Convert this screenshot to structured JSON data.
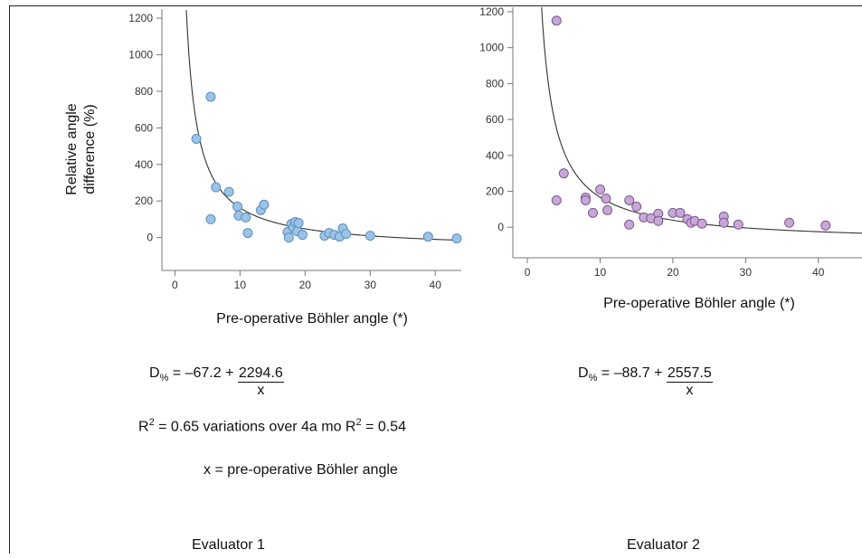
{
  "equations": {
    "eval1": {
      "prefix": "D",
      "subscript": "%",
      "lhs_rest": " = –67.2 + ",
      "numerator": "2294.6",
      "denominator": "x"
    },
    "eval2": {
      "prefix": "D",
      "subscript": "%",
      "lhs_rest": " = –88.7 + ",
      "numerator": "2557.5",
      "denominator": "x"
    }
  },
  "r2_line": {
    "part1": "R",
    "sup1": "2",
    "middle": " = 0.65 variations over 4a mo R",
    "sup2": "2",
    "end": " = 0.54"
  },
  "x_definition": "x = pre-operative Böhler angle",
  "evaluators": {
    "left": "Evaluator 1",
    "right": "Evaluator 2"
  },
  "chart_data": [
    {
      "type": "scatter",
      "title": "",
      "xlabel": "Pre-operative Böhler angle (*)",
      "ylabel_lines": [
        "Relative angle",
        "difference (%)"
      ],
      "xlim": [
        -2,
        44
      ],
      "ylim": [
        -180,
        1250
      ],
      "xticks": [
        0,
        10,
        20,
        30,
        40
      ],
      "yticks": [
        0,
        200,
        400,
        600,
        800,
        1000,
        1200
      ],
      "grid": false,
      "point_color": "#9cc3e6",
      "point_stroke": "#5a8fbf",
      "fit": {
        "a": -67.2,
        "b": 2294.6,
        "x_from": 1.75,
        "x_to": 44
      },
      "points": [
        {
          "x": 3.3,
          "y": 540
        },
        {
          "x": 5.5,
          "y": 770
        },
        {
          "x": 5.5,
          "y": 100
        },
        {
          "x": 6.3,
          "y": 275
        },
        {
          "x": 8.3,
          "y": 250
        },
        {
          "x": 9.6,
          "y": 170
        },
        {
          "x": 9.8,
          "y": 120
        },
        {
          "x": 10.9,
          "y": 110
        },
        {
          "x": 11.2,
          "y": 25
        },
        {
          "x": 13.2,
          "y": 150
        },
        {
          "x": 13.7,
          "y": 180
        },
        {
          "x": 17.3,
          "y": 30
        },
        {
          "x": 17.5,
          "y": 0
        },
        {
          "x": 17.9,
          "y": 75
        },
        {
          "x": 18.2,
          "y": 55
        },
        {
          "x": 18.5,
          "y": 85
        },
        {
          "x": 18.8,
          "y": 35
        },
        {
          "x": 19.0,
          "y": 80
        },
        {
          "x": 19.6,
          "y": 15
        },
        {
          "x": 23.0,
          "y": 10
        },
        {
          "x": 23.7,
          "y": 25
        },
        {
          "x": 24.5,
          "y": 15
        },
        {
          "x": 25.3,
          "y": 5
        },
        {
          "x": 25.8,
          "y": 50
        },
        {
          "x": 26.3,
          "y": 20
        },
        {
          "x": 30.0,
          "y": 10
        },
        {
          "x": 38.9,
          "y": 5
        },
        {
          "x": 43.3,
          "y": -5
        }
      ]
    },
    {
      "type": "scatter",
      "title": "",
      "xlabel": "Pre-operative Böhler angle (*)",
      "ylabel_lines": [],
      "xlim": [
        -2,
        46
      ],
      "ylim": [
        -170,
        1225
      ],
      "xticks": [
        0,
        10,
        20,
        30,
        40
      ],
      "yticks": [
        0,
        200,
        400,
        600,
        800,
        1000,
        1200
      ],
      "grid": false,
      "point_color": "#c8a6d6",
      "point_stroke": "#7a5a8f",
      "fit": {
        "a": -88.7,
        "b": 2557.5,
        "x_from": 1.9,
        "x_to": 46
      },
      "points": [
        {
          "x": 4.0,
          "y": 1150
        },
        {
          "x": 4.0,
          "y": 150
        },
        {
          "x": 5.0,
          "y": 300
        },
        {
          "x": 8.0,
          "y": 165
        },
        {
          "x": 8.0,
          "y": 150
        },
        {
          "x": 9.0,
          "y": 80
        },
        {
          "x": 10.0,
          "y": 210
        },
        {
          "x": 10.8,
          "y": 160
        },
        {
          "x": 11.0,
          "y": 95
        },
        {
          "x": 14.0,
          "y": 150
        },
        {
          "x": 14.0,
          "y": 15
        },
        {
          "x": 15.0,
          "y": 115
        },
        {
          "x": 16.0,
          "y": 55
        },
        {
          "x": 17.0,
          "y": 50
        },
        {
          "x": 18.0,
          "y": 75
        },
        {
          "x": 18.0,
          "y": 35
        },
        {
          "x": 20.0,
          "y": 80
        },
        {
          "x": 21.0,
          "y": 80
        },
        {
          "x": 22.0,
          "y": 45
        },
        {
          "x": 22.5,
          "y": 25
        },
        {
          "x": 23.0,
          "y": 35
        },
        {
          "x": 24.0,
          "y": 20
        },
        {
          "x": 27.0,
          "y": 60
        },
        {
          "x": 27.0,
          "y": 25
        },
        {
          "x": 29.0,
          "y": 15
        },
        {
          "x": 36.0,
          "y": 25
        },
        {
          "x": 41.0,
          "y": 10
        }
      ]
    }
  ]
}
